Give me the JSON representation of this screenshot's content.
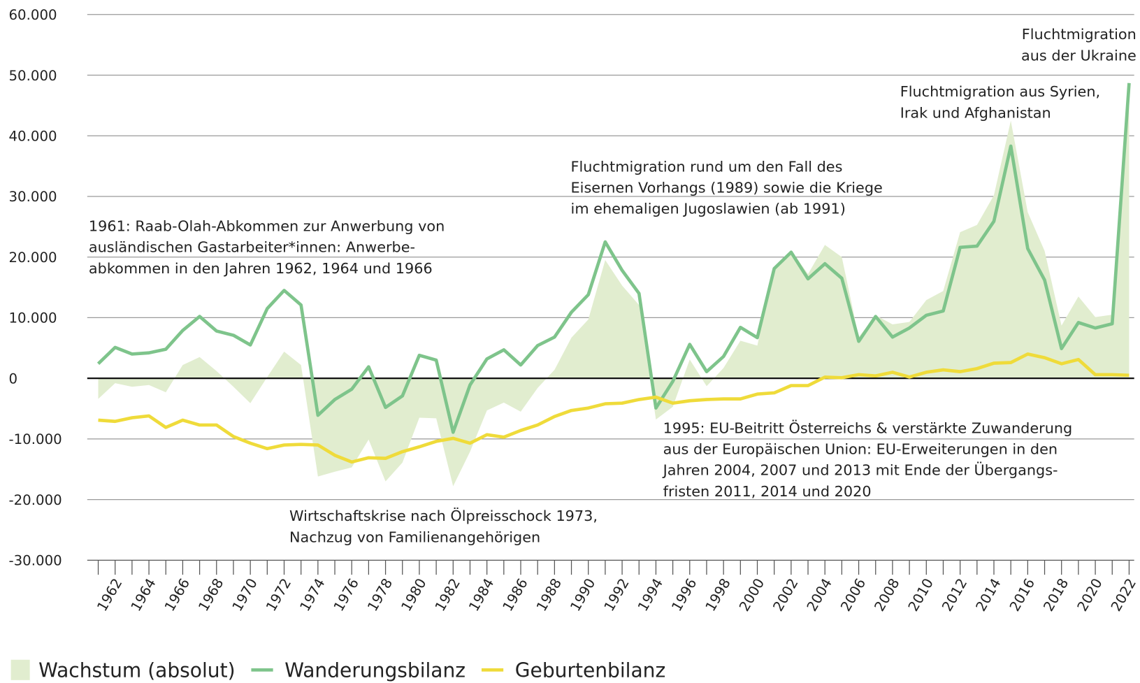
{
  "chart_data": {
    "type": "line",
    "x": [
      1961,
      1962,
      1963,
      1964,
      1965,
      1966,
      1967,
      1968,
      1969,
      1970,
      1971,
      1972,
      1973,
      1974,
      1975,
      1976,
      1977,
      1978,
      1979,
      1980,
      1981,
      1982,
      1983,
      1984,
      1985,
      1986,
      1987,
      1988,
      1989,
      1990,
      1991,
      1992,
      1993,
      1994,
      1995,
      1996,
      1997,
      1998,
      1999,
      2000,
      2001,
      2002,
      2003,
      2004,
      2005,
      2006,
      2007,
      2008,
      2009,
      2010,
      2011,
      2012,
      2013,
      2014,
      2015,
      2016,
      2017,
      2018,
      2019,
      2020,
      2021,
      2022
    ],
    "series": [
      {
        "name": "Wachstum (absolut)",
        "type": "area",
        "color": "#e1edcf",
        "values": [
          -3400,
          -800,
          -1400,
          -1100,
          -2300,
          2200,
          3500,
          1200,
          -1400,
          -4100,
          200,
          4400,
          2200,
          -16200,
          -15400,
          -14700,
          -10100,
          -17000,
          -13900,
          -6500,
          -6600,
          -17800,
          -12100,
          -5300,
          -4000,
          -5500,
          -1600,
          1400,
          6700,
          9700,
          19500,
          15300,
          12100,
          -6800,
          -4700,
          3100,
          -1300,
          1700,
          6200,
          5400,
          18300,
          21100,
          17200,
          22000,
          20000,
          6800,
          10400,
          8900,
          9300,
          12900,
          14400,
          24100,
          25300,
          30200,
          42500,
          27400,
          21000,
          8700,
          13500,
          10100,
          10500,
          49100
        ]
      },
      {
        "name": "Wanderungsbilanz",
        "type": "line",
        "color": "#7ec48b",
        "values": [
          2400,
          5100,
          4000,
          4200,
          4800,
          7900,
          10200,
          7800,
          7100,
          5500,
          11500,
          14500,
          12100,
          -6100,
          -3500,
          -1800,
          1900,
          -4800,
          -2900,
          3800,
          3000,
          -8900,
          -1100,
          3200,
          4700,
          2200,
          5400,
          6800,
          10900,
          13800,
          22500,
          17800,
          14000,
          -4900,
          -500,
          5600,
          1100,
          3600,
          8400,
          6700,
          18100,
          20800,
          16400,
          18900,
          16500,
          6100,
          10200,
          6800,
          8300,
          10400,
          11100,
          21600,
          21800,
          25900,
          38300,
          21400,
          16200,
          4900,
          9200,
          8300,
          9000,
          48700
        ]
      },
      {
        "name": "Geburtenbilanz",
        "type": "line",
        "color": "#efdb3a",
        "values": [
          -6900,
          -7100,
          -6500,
          -6200,
          -8100,
          -6900,
          -7700,
          -7700,
          -9600,
          -10700,
          -11600,
          -11000,
          -10900,
          -11000,
          -12700,
          -13800,
          -13100,
          -13200,
          -12100,
          -11300,
          -10400,
          -9900,
          -10700,
          -9300,
          -9700,
          -8600,
          -7700,
          -6300,
          -5300,
          -4900,
          -4200,
          -4100,
          -3500,
          -3100,
          -4100,
          -3700,
          -3500,
          -3400,
          -3400,
          -2600,
          -2400,
          -1200,
          -1200,
          200,
          100,
          600,
          400,
          1000,
          200,
          1000,
          1400,
          1100,
          1600,
          2500,
          2600,
          4000,
          3400,
          2400,
          3100,
          600,
          600,
          500
        ]
      }
    ],
    "xlim": [
      1960.35,
      2022.3
    ],
    "xticks": [
      1962,
      1964,
      1966,
      1968,
      1970,
      1972,
      1974,
      1976,
      1978,
      1980,
      1982,
      1984,
      1986,
      1988,
      1990,
      1992,
      1994,
      1996,
      1998,
      2000,
      2002,
      2004,
      2006,
      2008,
      2010,
      2012,
      2014,
      2016,
      2018,
      2020,
      2022
    ],
    "ylim": [
      -30000,
      60000
    ],
    "yticks": [
      {
        "value": -30000,
        "label": "-30.000"
      },
      {
        "value": -20000,
        "label": "-20.000"
      },
      {
        "value": -10000,
        "label": "-10.000"
      },
      0,
      {
        "value": 10000,
        "label": "10.000"
      },
      {
        "value": 20000,
        "label": "20.000"
      },
      {
        "value": 30000,
        "label": "30.000"
      },
      {
        "value": 40000,
        "label": "40.000"
      },
      {
        "value": 50000,
        "label": "50.000"
      },
      {
        "value": 60000,
        "label": "60.000"
      }
    ],
    "grid": true,
    "legend": "bottom-left",
    "annotations": [
      [
        "1961: Raab-Olah-Abkommen zur Anwerbung von",
        "ausländischen Gastarbeiter*innen: Anwerbe-",
        "abkommen in den Jahren 1962, 1964 und 1966"
      ],
      [
        "Wirtschaftskrise nach Ölpreisschock 1973,",
        "Nachzug von Familienangehörigen"
      ],
      [
        "Fluchtmigration rund um den Fall des",
        "Eisernen Vorhangs (1989) sowie die Kriege",
        "im ehemaligen Jugoslawien (ab 1991)"
      ],
      [
        "1995: EU-Beitritt Österreichs & verstärkte Zuwanderung",
        "aus der Europäischen Union: EU-Erweiterungen in den",
        "Jahren 2004, 2007 und 2013 mit Ende der Übergangs-",
        "fristen 2011, 2014 und 2020"
      ],
      [
        "Fluchtmigration aus Syrien,",
        "Irak und Afghanistan"
      ],
      [
        "Fluchtmigration",
        "aus der Ukraine"
      ]
    ]
  }
}
